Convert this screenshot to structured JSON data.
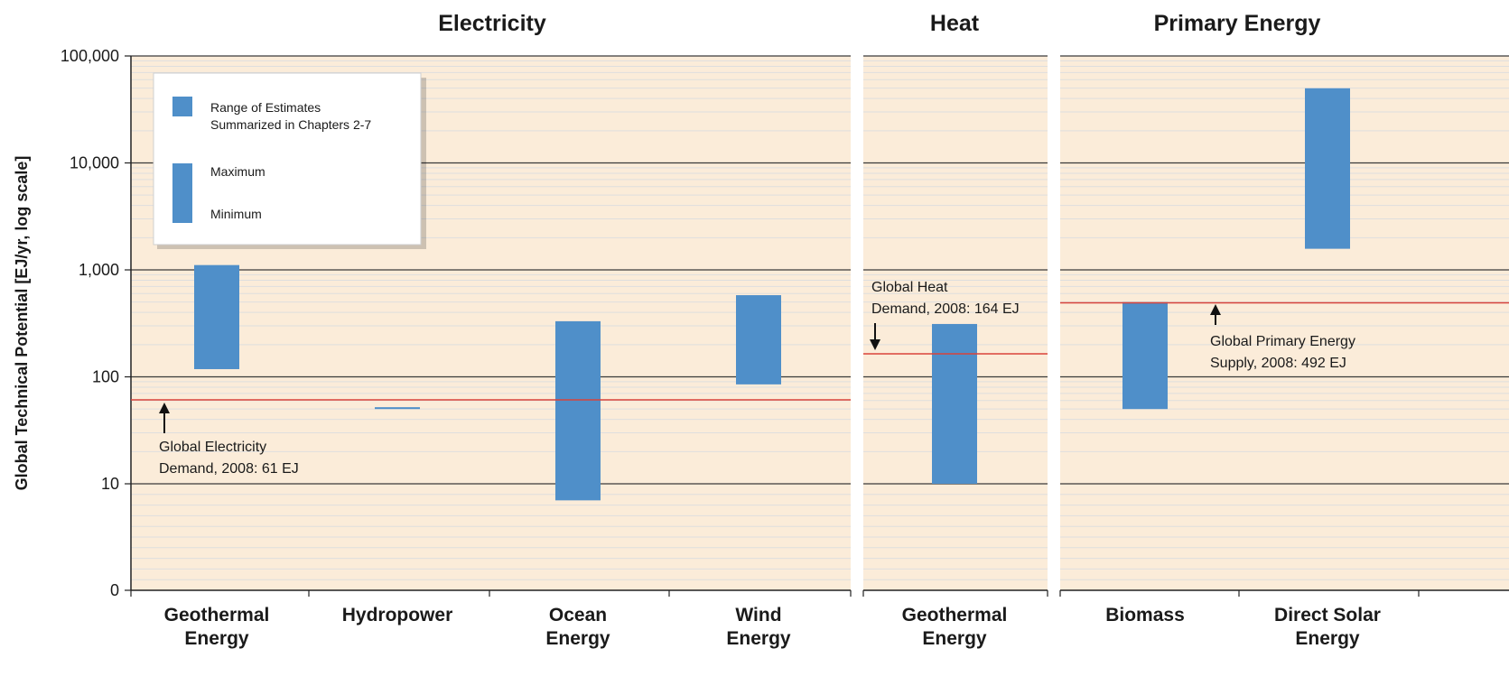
{
  "chart_data": {
    "type": "bar",
    "subtype": "floating-range",
    "title": "",
    "ylabel": "Global Technical Potential [EJ/yr, log scale]",
    "yscale": "log",
    "ylim": [
      0,
      100000
    ],
    "yticks": [
      "100,000",
      "10,000",
      "1,000",
      "100",
      "10",
      "0"
    ],
    "grid": true,
    "groups": [
      {
        "name": "Electricity",
        "categories": [
          {
            "label": [
              "Geothermal",
              "Energy"
            ],
            "min": 118,
            "max": 1109
          },
          {
            "label": [
              "Hydropower"
            ],
            "min": 50,
            "max": 52
          },
          {
            "label": [
              "Ocean",
              "Energy"
            ],
            "min": 7,
            "max": 331
          },
          {
            "label": [
              "Wind",
              "Energy"
            ],
            "min": 85,
            "max": 580
          }
        ],
        "reference": {
          "value": 61,
          "label": [
            "Global Electricity",
            "Demand, 2008: 61 EJ"
          ]
        }
      },
      {
        "name": "Heat",
        "categories": [
          {
            "label": [
              "Geothermal",
              "Energy"
            ],
            "min": 10,
            "max": 312
          }
        ],
        "reference": {
          "value": 164,
          "label": [
            "Global Heat",
            "Demand, 2008: 164 EJ"
          ]
        }
      },
      {
        "name": "Primary Energy",
        "categories": [
          {
            "label": [
              "Biomass"
            ],
            "min": 50,
            "max": 500
          },
          {
            "label": [
              "Direct Solar",
              "Energy"
            ],
            "min": 1575,
            "max": 49837
          }
        ],
        "reference": {
          "value": 492,
          "label": [
            "Global Primary Energy",
            "Supply, 2008: 492 EJ"
          ]
        }
      }
    ],
    "legend": {
      "position": "top-left",
      "range_label": [
        "Range of Estimates",
        "Summarized in Chapters 2-7"
      ],
      "max_label": "Maximum",
      "min_label": "Minimum"
    },
    "colors": {
      "bar": "#4f8fc9",
      "reference_line": "#d9433a",
      "panel_bg": "#fbecd9",
      "minor_grid": "#dedede",
      "major_grid": "#3a3a3a"
    }
  }
}
